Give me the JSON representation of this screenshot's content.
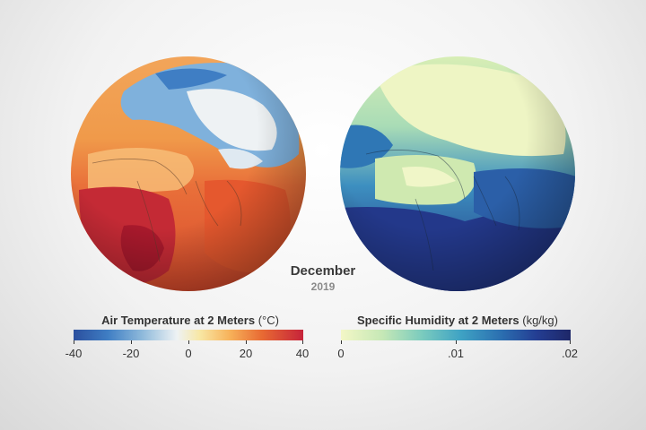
{
  "date": {
    "month": "December",
    "year": "2019"
  },
  "legends": {
    "temperature": {
      "title": "Air Temperature at 2 Meters",
      "unit": "(°C)",
      "ticks": [
        "-40",
        "-20",
        "0",
        "20",
        "40"
      ]
    },
    "humidity": {
      "title": "Specific Humidity at 2 Meters",
      "unit": "(kg/kg)",
      "ticks": [
        "0",
        ".01",
        ".02"
      ]
    }
  },
  "colors": {
    "temp_cold": "#2b4f9e",
    "temp_neutral": "#eef2f4",
    "temp_hot": "#c6233a",
    "hum_low": "#f3f7c6",
    "hum_high": "#1e2768"
  }
}
